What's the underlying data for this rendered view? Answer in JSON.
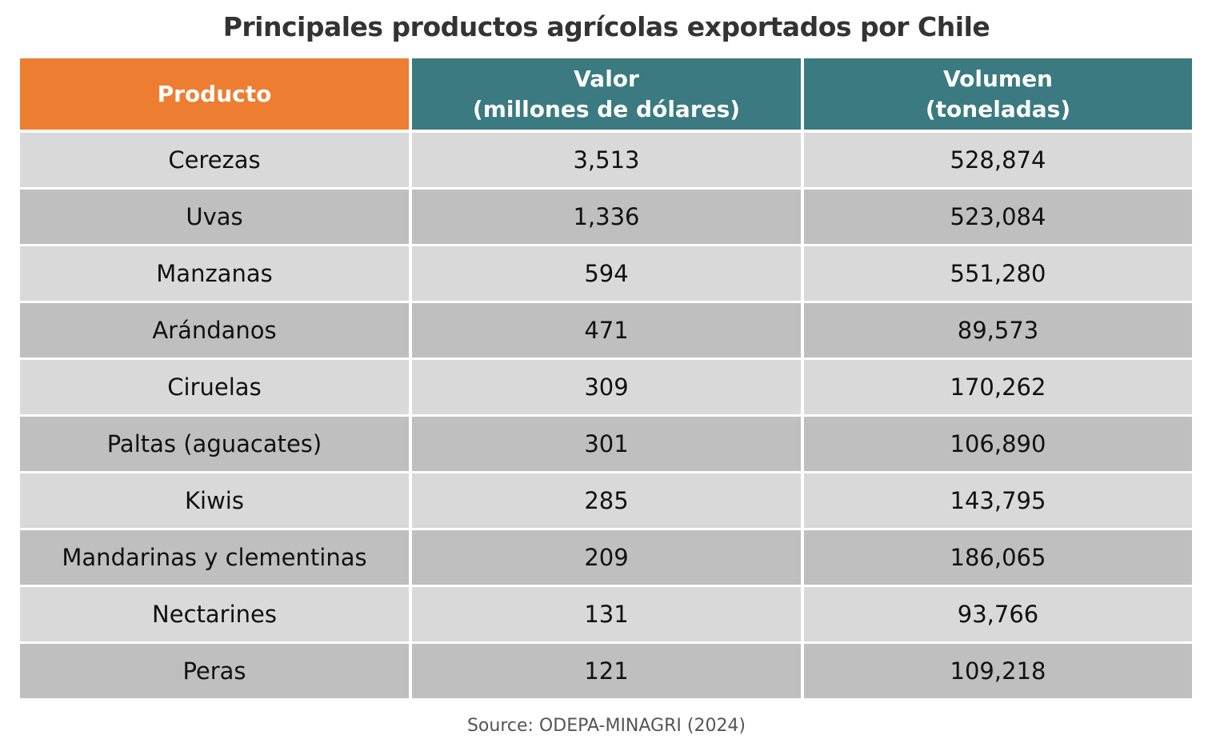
{
  "title": "Principales productos agrícolas exportados por Chile",
  "table": {
    "header": [
      [
        "Producto"
      ],
      [
        "Valor",
        "(millones de dólares)"
      ],
      [
        "Volumen",
        "(toneladas)"
      ]
    ],
    "rows": [
      [
        "Cerezas",
        "3,513",
        "528,874"
      ],
      [
        "Uvas",
        "1,336",
        "523,084"
      ],
      [
        "Manzanas",
        "594",
        "551,280"
      ],
      [
        "Arándanos",
        "471",
        "89,573"
      ],
      [
        "Ciruelas",
        "309",
        "170,262"
      ],
      [
        "Paltas (aguacates)",
        "301",
        "106,890"
      ],
      [
        "Kiwis",
        "285",
        "143,795"
      ],
      [
        "Mandarinas y clementinas",
        "209",
        "186,065"
      ],
      [
        "Nectarines",
        "131",
        "93,766"
      ],
      [
        "Peras",
        "121",
        "109,218"
      ]
    ]
  },
  "source": "Source: ODEPA-MINAGRI (2024)"
}
